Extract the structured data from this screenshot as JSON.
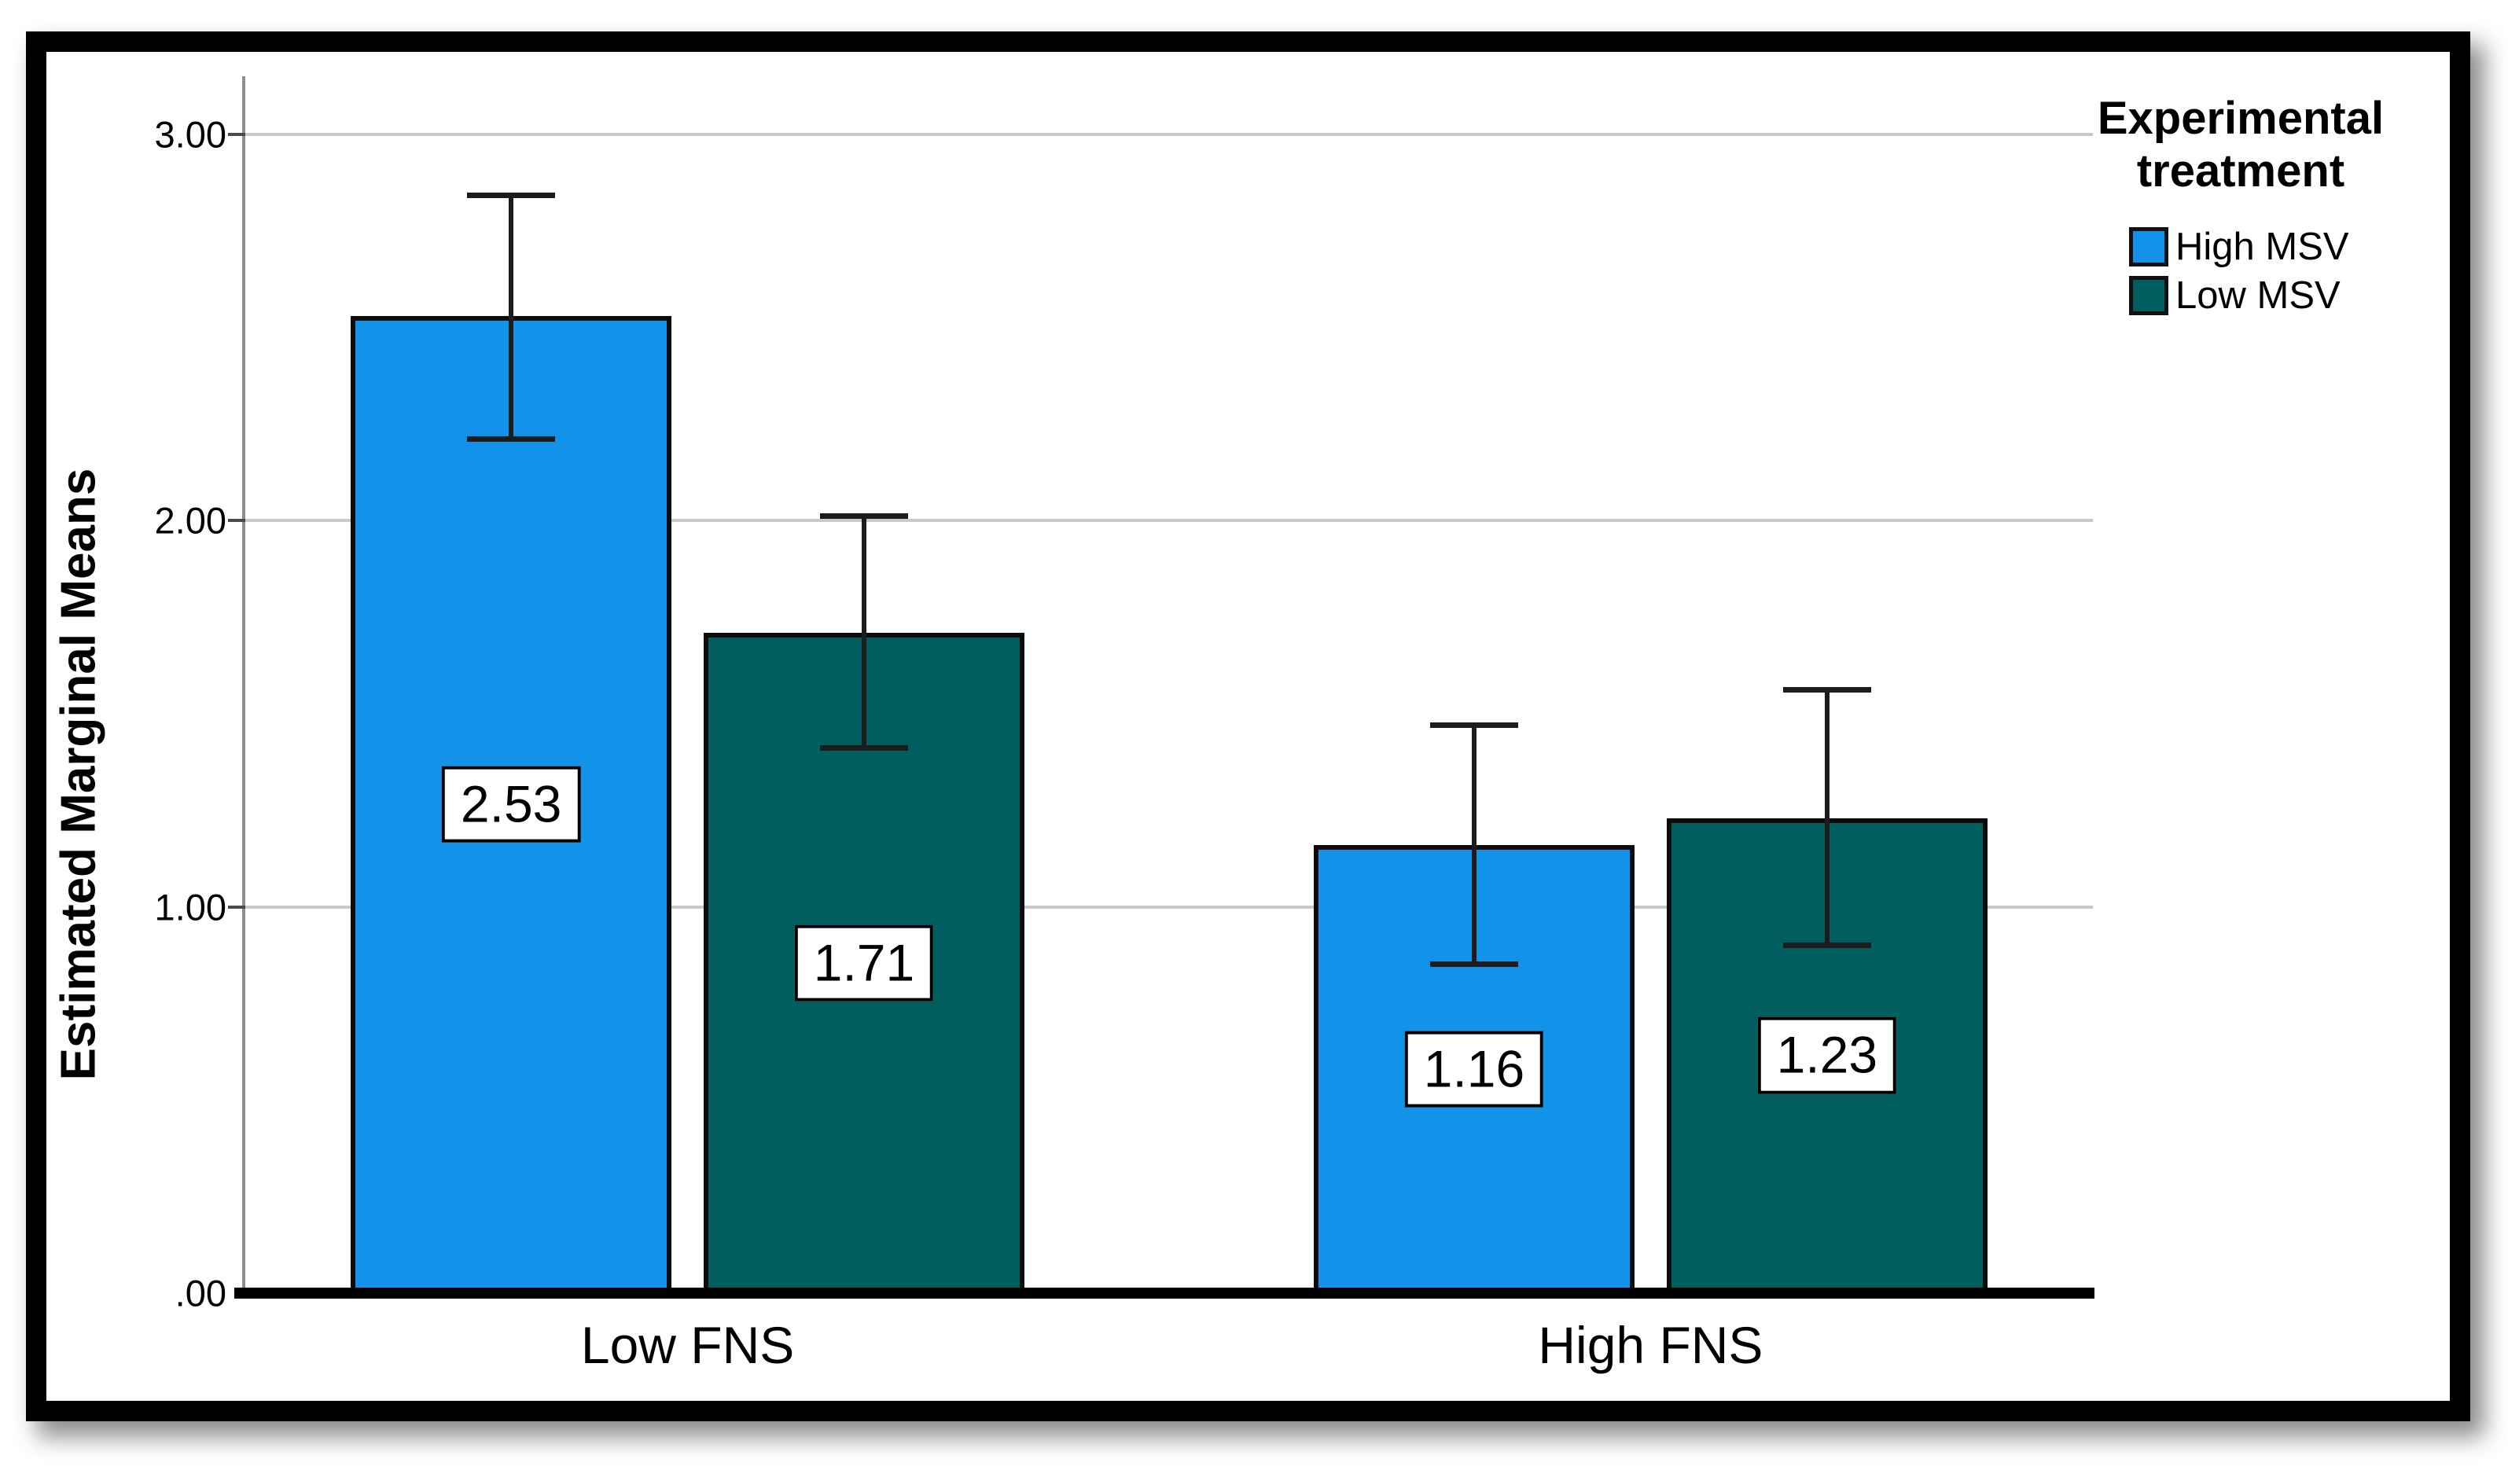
{
  "chart_data": {
    "type": "bar",
    "title": "",
    "ylabel": "Estimated Marginal Means",
    "xlabel": "",
    "categories": [
      "Low FNS",
      "High FNS"
    ],
    "series": [
      {
        "name": "High MSV",
        "color": "#1292E8",
        "values": [
          2.53,
          1.16
        ],
        "value_labels": [
          "2.53",
          "1.16"
        ],
        "ci_low": [
          2.21,
          0.85
        ],
        "ci_high": [
          2.84,
          1.47
        ]
      },
      {
        "name": "Low MSV",
        "color": "#005E5E",
        "values": [
          1.71,
          1.23
        ],
        "value_labels": [
          "1.71",
          "1.23"
        ],
        "ci_low": [
          1.41,
          0.9
        ],
        "ci_high": [
          2.01,
          1.56
        ]
      }
    ],
    "y_ticks": [
      {
        "value": 3,
        "label": "3.00"
      },
      {
        "value": 2,
        "label": "2.00"
      },
      {
        "value": 1,
        "label": "1.00"
      },
      {
        "value": 0,
        "label": ".00"
      }
    ],
    "ylim": [
      0,
      3.15
    ],
    "grid": "horizontal",
    "error_bars": "95% CI whiskers with caps, drawn over bars",
    "legend": {
      "title": "Experimental treatment",
      "position": "top-right"
    },
    "colors": {
      "high_msv": "#1292E8",
      "low_msv": "#005E5E",
      "bar_border": "#0b0b0b",
      "gridline": "#c9c9c9",
      "y_axis_line": "#8e8e8e",
      "baseline": "#000000",
      "error_bar": "#1c1c1c",
      "value_box_bg": "#ffffff",
      "value_box_border": "#000000",
      "frame": "#000000"
    }
  }
}
